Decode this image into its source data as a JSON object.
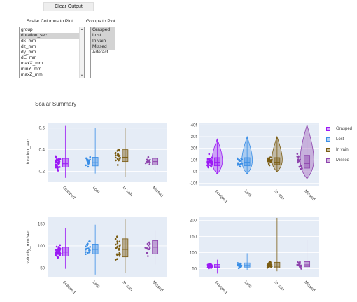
{
  "controls": {
    "clear_button": "Clear Output",
    "scalar_label": "Scalar Columns to Plot",
    "groups_label": "Groups to Plot",
    "scalar_options": [
      {
        "label": "group",
        "selected": false
      },
      {
        "label": "duration_sec",
        "selected": true
      },
      {
        "label": "dx_mm",
        "selected": false
      },
      {
        "label": "dz_mm",
        "selected": false
      },
      {
        "label": "dy_mm",
        "selected": false
      },
      {
        "label": "dE_mm",
        "selected": false
      },
      {
        "label": "maxX_mm",
        "selected": false
      },
      {
        "label": "minY_mm",
        "selected": false
      },
      {
        "label": "maxZ_mm",
        "selected": false
      }
    ],
    "group_options": [
      {
        "label": "Grasped",
        "selected": true
      },
      {
        "label": "Lost",
        "selected": true
      },
      {
        "label": "In vain",
        "selected": true
      },
      {
        "label": "Missed",
        "selected": true
      },
      {
        "label": "Artefact",
        "selected": false
      }
    ]
  },
  "summary_title": "Scalar Summary",
  "legend": [
    {
      "label": "Grasped",
      "color": "#9b19f5"
    },
    {
      "label": "Lost",
      "color": "#3a8ee6"
    },
    {
      "label": "In vain",
      "color": "#7a5c12"
    },
    {
      "label": "Missed",
      "color": "#8e44ad"
    }
  ],
  "chart_data": [
    {
      "type": "box-strip",
      "ylabel": "duration_sec",
      "ylim": [
        0.1,
        0.65
      ],
      "yticks": [
        "0.2",
        "0.4",
        "0.6"
      ],
      "ytick_values": [
        0.2,
        0.4,
        0.6
      ],
      "categories": [
        "Grasped",
        "Lost",
        "In vain",
        "Missed"
      ],
      "boxes": [
        {
          "q1": 0.24,
          "median": 0.27,
          "q3": 0.32,
          "lo": 0.14,
          "hi": 0.62
        },
        {
          "q1": 0.25,
          "median": 0.28,
          "q3": 0.33,
          "lo": 0.18,
          "hi": 0.6
        },
        {
          "q1": 0.29,
          "median": 0.33,
          "q3": 0.4,
          "lo": 0.15,
          "hi": 0.6
        },
        {
          "q1": 0.26,
          "median": 0.29,
          "q3": 0.32,
          "lo": 0.2,
          "hi": 0.36
        }
      ]
    },
    {
      "type": "violin",
      "ylabel": "",
      "ylim": [
        -12,
        42
      ],
      "yticks": [
        "-10f",
        "0f",
        "10f",
        "20f",
        "30f",
        "40f"
      ],
      "ytick_values": [
        -10,
        0,
        10,
        20,
        30,
        40
      ],
      "categories": [
        "Grasped",
        "Lost",
        "In vain",
        "Missed"
      ],
      "boxes": [
        {
          "q1": 5,
          "median": 8,
          "q3": 12,
          "lo": -2,
          "hi": 28
        },
        {
          "q1": 5,
          "median": 8,
          "q3": 12,
          "lo": -2,
          "hi": 30
        },
        {
          "q1": 6,
          "median": 8,
          "q3": 12,
          "lo": 0,
          "hi": 30
        },
        {
          "q1": 3,
          "median": 7,
          "q3": 14,
          "lo": -6,
          "hi": 40
        }
      ]
    },
    {
      "type": "box-strip",
      "ylabel": "velocity_mm/sec",
      "ylim": [
        30,
        165
      ],
      "yticks": [
        "50",
        "100",
        "150"
      ],
      "ytick_values": [
        50,
        100,
        150
      ],
      "categories": [
        "Grasped",
        "Lost",
        "In vain",
        "Missed"
      ],
      "boxes": [
        {
          "q1": 77,
          "median": 86,
          "q3": 97,
          "lo": 48,
          "hi": 140
        },
        {
          "q1": 82,
          "median": 92,
          "q3": 104,
          "lo": 35,
          "hi": 148
        },
        {
          "q1": 75,
          "median": 92,
          "q3": 116,
          "lo": 38,
          "hi": 160
        },
        {
          "q1": 82,
          "median": 97,
          "q3": 112,
          "lo": 58,
          "hi": 136
        }
      ]
    },
    {
      "type": "box-strip",
      "ylabel": "",
      "ylim": [
        25,
        210
      ],
      "yticks": [
        "50",
        "100",
        "150",
        "200"
      ],
      "ytick_values": [
        50,
        100,
        150,
        200
      ],
      "categories": [
        "Grasped",
        "Lost",
        "In vain",
        "Missed"
      ],
      "boxes": [
        {
          "q1": 54,
          "median": 58,
          "q3": 63,
          "lo": 35,
          "hi": 78
        },
        {
          "q1": 55,
          "median": 60,
          "q3": 68,
          "lo": 45,
          "hi": 98
        },
        {
          "q1": 53,
          "median": 58,
          "q3": 70,
          "lo": 42,
          "hi": 208
        },
        {
          "q1": 56,
          "median": 62,
          "q3": 72,
          "lo": 45,
          "hi": 138
        }
      ]
    }
  ]
}
